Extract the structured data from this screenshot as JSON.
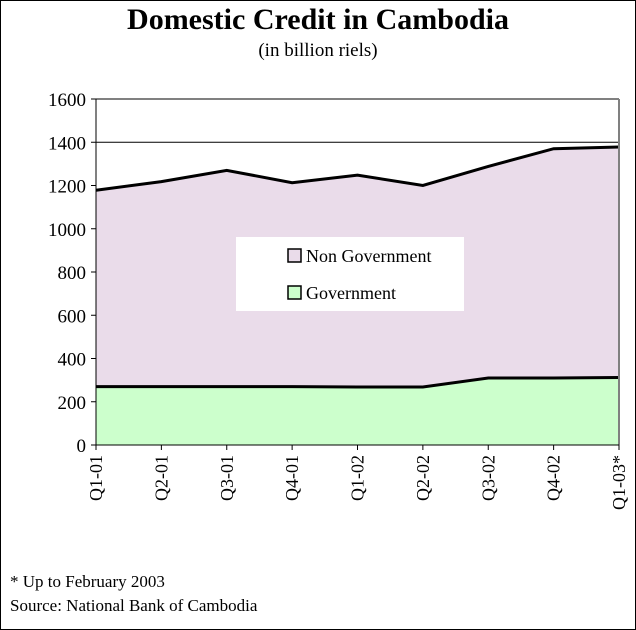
{
  "chart_data": {
    "type": "area",
    "title": "Domestic Credit in Cambodia",
    "subtitle": "(in billion riels)",
    "categories": [
      "Q1-01",
      "Q2-01",
      "Q3-01",
      "Q4-01",
      "Q1-02",
      "Q2-02",
      "Q3-02",
      "Q4-02",
      "Q1-03*"
    ],
    "stacked": true,
    "series": [
      {
        "name": "Government",
        "values": [
          270,
          270,
          270,
          270,
          268,
          268,
          310,
          310,
          312
        ],
        "color": "#ccffcc"
      },
      {
        "name": "Non Government",
        "values": [
          908,
          948,
          1000,
          943,
          980,
          932,
          978,
          1060,
          1066
        ],
        "color": "#eadcea"
      }
    ],
    "ylim": [
      0,
      1600
    ],
    "yticks": [
      0,
      200,
      400,
      600,
      800,
      1000,
      1200,
      1400,
      1600
    ],
    "grid": "horizontal at 1400",
    "legend": "center",
    "legend_order": [
      "Non Government",
      "Government"
    ]
  },
  "footnotes": {
    "note": "* Up to February 2003",
    "source": "Source: National Bank of Cambodia"
  },
  "colors": {
    "plot_background": "#ffffff",
    "line": "#000000",
    "axis": "#808080"
  }
}
